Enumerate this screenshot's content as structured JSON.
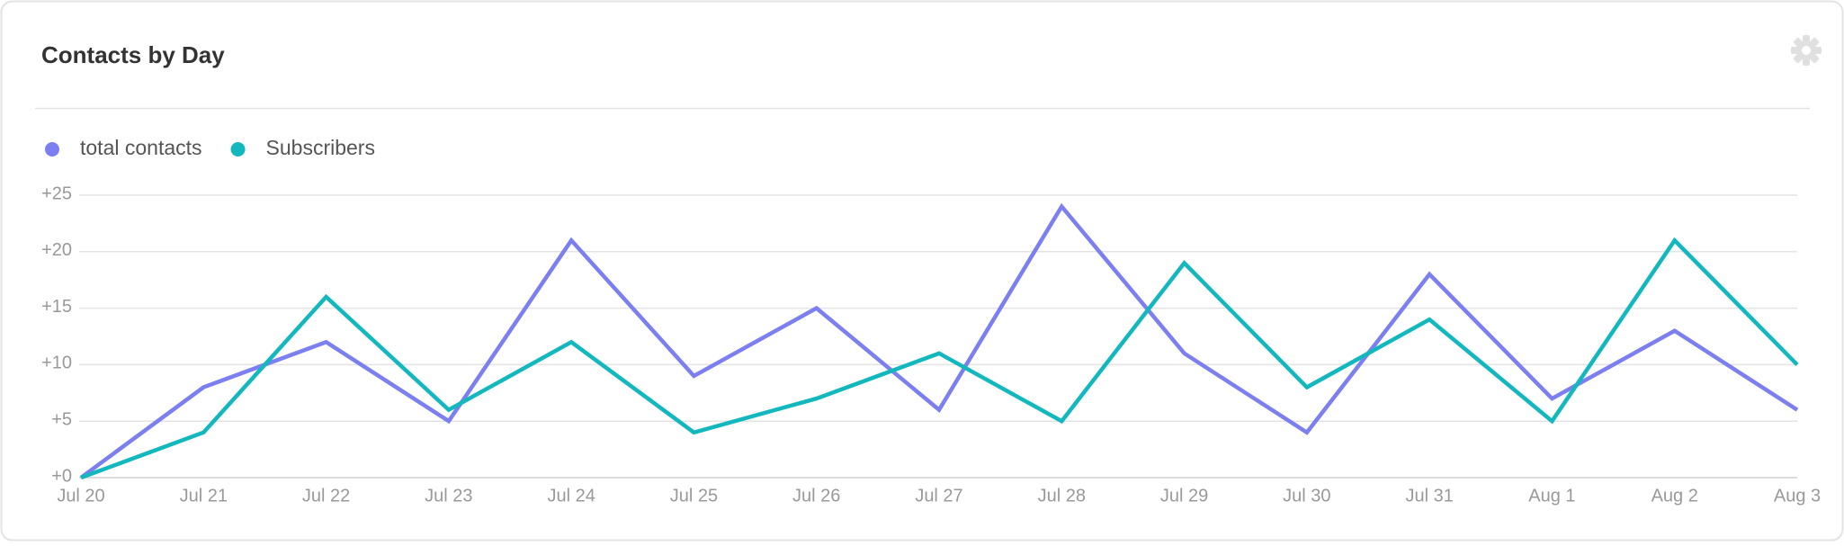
{
  "chart_data": {
    "type": "line",
    "title": "Contacts by Day",
    "categories": [
      "Jul 20",
      "Jul 21",
      "Jul 22",
      "Jul 23",
      "Jul 24",
      "Jul 25",
      "Jul 26",
      "Jul 27",
      "Jul 28",
      "Jul 29",
      "Jul 30",
      "Jul 31",
      "Aug 1",
      "Aug 2",
      "Aug 3"
    ],
    "series": [
      {
        "name": "total contacts",
        "color": "#7b7ff0",
        "values": [
          0,
          8,
          12,
          5,
          21,
          9,
          15,
          6,
          24,
          11,
          4,
          18,
          7,
          13,
          6
        ]
      },
      {
        "name": "Subscribers",
        "color": "#12b8bd",
        "values": [
          0,
          4,
          16,
          6,
          12,
          4,
          7,
          11,
          5,
          19,
          8,
          14,
          5,
          21,
          10
        ]
      }
    ],
    "ylim": [
      0,
      25
    ],
    "yticks": [
      {
        "value": 0,
        "label": "+0"
      },
      {
        "value": 5,
        "label": "+5"
      },
      {
        "value": 10,
        "label": "+10"
      },
      {
        "value": 15,
        "label": "+15"
      },
      {
        "value": 20,
        "label": "+20"
      },
      {
        "value": 25,
        "label": "+25"
      }
    ],
    "grid": true
  }
}
